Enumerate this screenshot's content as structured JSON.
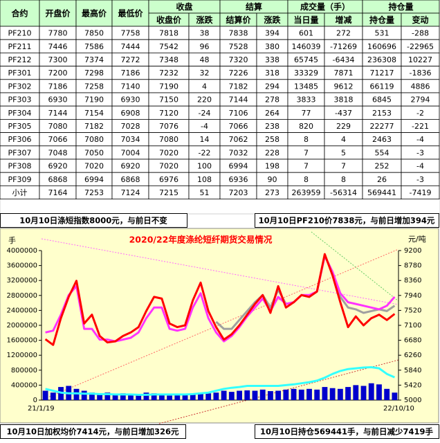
{
  "table": {
    "header_top": [
      "合约",
      "开盘价",
      "最高价",
      "最低价",
      "收盘",
      "结算",
      "成交量（手）",
      "持仓量"
    ],
    "header_sub": [
      "收盘价",
      "涨跌",
      "结算价",
      "涨跌",
      "当日量",
      "增减",
      "持仓量",
      "变动"
    ],
    "rows": [
      [
        "PF210",
        7780,
        7850,
        7758,
        7818,
        38,
        7838,
        394,
        601,
        272,
        531,
        -288
      ],
      [
        "PF211",
        7446,
        7586,
        7444,
        7542,
        96,
        7528,
        380,
        146039,
        -71269,
        160696,
        -22965
      ],
      [
        "PF212",
        7300,
        7374,
        7272,
        7348,
        48,
        7320,
        338,
        65745,
        -6434,
        236308,
        10227
      ],
      [
        "PF301",
        7200,
        7298,
        7186,
        7232,
        32,
        7226,
        318,
        33329,
        7871,
        71217,
        -1836
      ],
      [
        "PF302",
        7186,
        7258,
        7140,
        7190,
        4,
        7182,
        294,
        13485,
        9612,
        66119,
        4886
      ],
      [
        "PF303",
        6930,
        7190,
        6930,
        7150,
        220,
        7144,
        278,
        3833,
        3818,
        6845,
        2794
      ],
      [
        "PF304",
        7144,
        7154,
        6908,
        7120,
        -24,
        7106,
        264,
        77,
        -437,
        2153,
        -2
      ],
      [
        "PF305",
        7080,
        7182,
        7028,
        7076,
        -4,
        7066,
        238,
        820,
        229,
        22277,
        -221
      ],
      [
        "PF306",
        7066,
        7080,
        7034,
        7080,
        14,
        7062,
        258,
        8,
        4,
        2463,
        -4
      ],
      [
        "PF307",
        7048,
        7050,
        7004,
        7020,
        -22,
        7032,
        228,
        7,
        5,
        554,
        -3
      ],
      [
        "PF308",
        6920,
        7020,
        6920,
        7020,
        100,
        6994,
        198,
        7,
        7,
        252,
        -4
      ],
      [
        "PF309",
        6868,
        6994,
        6868,
        6976,
        108,
        6936,
        90,
        8,
        8,
        26,
        -3
      ],
      [
        "小计",
        7164,
        7253,
        7124,
        7215,
        51,
        7203,
        273,
        263959,
        -56314,
        569441,
        -7419
      ]
    ]
  },
  "chart_data": {
    "type": "line",
    "title": "2020/22年度涤纶短纤期货交易情况",
    "ylabel": "手",
    "y2label": "元/吨",
    "annotations": [
      "10月10日涤短指数8000元，与前日不变",
      "10月10日PF210价7838元，与前日增加394元",
      "10月10日加权均价7414元，与前日增加326元",
      "10月10日持仓569441手，与前日减少7419手"
    ],
    "categories": [
      "21/1/19",
      null,
      null,
      null,
      null,
      null,
      null,
      null,
      null,
      null,
      null,
      null,
      null,
      null,
      null,
      null,
      null,
      null,
      null,
      null,
      null,
      null,
      null,
      null,
      null,
      null,
      null,
      null,
      null,
      null,
      null,
      null,
      null,
      null,
      null,
      null,
      null,
      null,
      null,
      null,
      null,
      null,
      null,
      null,
      null,
      "22/10/10"
    ],
    "ylim": [
      0,
      4000000
    ],
    "yticks": [
      0,
      400000,
      800000,
      1200000,
      1600000,
      2000000,
      2400000,
      2800000,
      3200000,
      3600000,
      4000000
    ],
    "y2lim": [
      5000,
      9200
    ],
    "y2ticks": [
      5000,
      5420,
      5840,
      6260,
      6680,
      7100,
      7520,
      7940,
      8360,
      8780,
      9200
    ],
    "series": [
      {
        "type": "bar",
        "color": "#0000cc",
        "values": [
          250000,
          200000,
          350000,
          380000,
          300000,
          250000,
          200000,
          180000,
          200000,
          150000,
          180000,
          170000,
          160000,
          200000,
          180000,
          150000,
          120000,
          150000,
          140000,
          150000,
          200000,
          180000,
          200000,
          250000,
          220000,
          250000,
          260000,
          250000,
          280000,
          240000,
          250000,
          280000,
          300000,
          280000,
          300000,
          280000,
          350000,
          320000,
          300000,
          350000,
          400000,
          380000,
          450000,
          420000,
          300000,
          200000
        ]
      },
      {
        "type": "line",
        "color": "#33ffff",
        "values": [
          300000,
          250000,
          200000,
          180000,
          180000,
          170000,
          170000,
          160000,
          160000,
          150000,
          150000,
          150000,
          140000,
          140000,
          150000,
          150000,
          150000,
          150000,
          150000,
          160000,
          180000,
          200000,
          250000,
          300000,
          330000,
          350000,
          380000,
          380000,
          380000,
          380000,
          380000,
          400000,
          420000,
          450000,
          480000,
          520000,
          600000,
          700000,
          780000,
          830000,
          850000,
          870000,
          880000,
          850000,
          700000,
          610000
        ]
      },
      {
        "type": "line",
        "color": "#a0a0a0",
        "axis": "y2",
        "values": [
          null,
          null,
          null,
          null,
          null,
          null,
          null,
          null,
          null,
          null,
          null,
          null,
          null,
          null,
          null,
          null,
          null,
          null,
          null,
          null,
          null,
          null,
          7200,
          7000,
          7000,
          7250,
          7500,
          7750,
          7950,
          7600,
          8100,
          7700,
          7750,
          7950,
          7900,
          8050,
          9050,
          8600,
          7900,
          7600,
          7550,
          7450,
          7500,
          7550,
          7500,
          7650
        ]
      },
      {
        "type": "line",
        "color": "#ff33ff",
        "axis": "y2",
        "values": [
          6900,
          6950,
          7400,
          7950,
          8200,
          7000,
          7000,
          6700,
          6700,
          6650,
          6700,
          6750,
          6900,
          7300,
          7600,
          7600,
          7000,
          6950,
          7000,
          7600,
          8000,
          7300,
          6900,
          6650,
          6800,
          7050,
          7350,
          7600,
          7850,
          7500,
          7900,
          7700,
          7750,
          7950,
          7950,
          8050,
          9050,
          8600,
          8000,
          7750,
          7700,
          7650,
          7600,
          7550,
          7650,
          7900
        ]
      },
      {
        "type": "line",
        "color": "#ff0000",
        "axis": "y2",
        "values": [
          6710,
          6550,
          7300,
          7900,
          8350,
          7150,
          7400,
          6800,
          6620,
          6650,
          6800,
          6900,
          7050,
          7500,
          7900,
          7850,
          7150,
          7050,
          7100,
          7800,
          8300,
          7500,
          7050,
          6700,
          6850,
          7100,
          7400,
          7700,
          7950,
          7450,
          8200,
          7600,
          7750,
          7950,
          7900,
          8050,
          9100,
          8500,
          7750,
          7050,
          7350,
          7100,
          7300,
          7400,
          7250,
          7420
        ]
      }
    ]
  }
}
